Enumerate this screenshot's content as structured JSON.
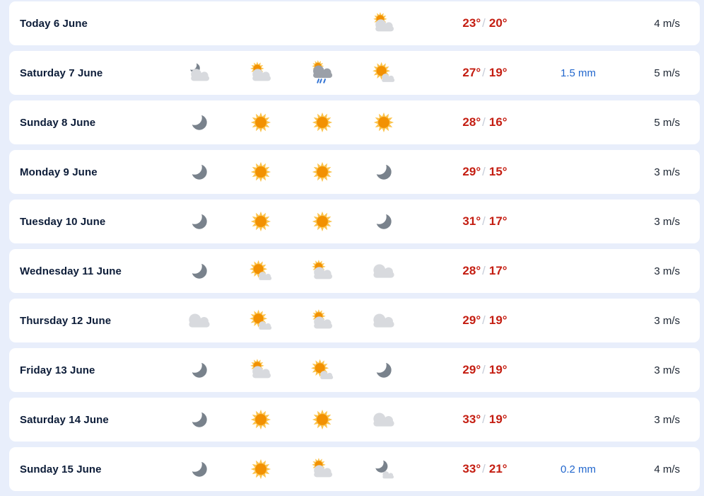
{
  "temp_divider": "/",
  "colors": {
    "background": "#e8eefb",
    "card": "#ffffff",
    "day-text": "#0c1c38",
    "temp": "#c41d11",
    "divider": "#c7cdd9",
    "precipitation": "#2267cd",
    "wind-text": "#1d2633",
    "sun-core": "#f29102",
    "sun-rays": "#fbc34d",
    "cloud-light": "#d8dade",
    "cloud-dark": "#9ba0a8",
    "moon": "#79828c",
    "rain-drop": "#3575d4"
  },
  "rows": [
    {
      "day": "Today 6 June",
      "icons": [
        null,
        null,
        null,
        "partlycloudy-day"
      ],
      "temp_max": "23°",
      "temp_min": "20°",
      "precipitation": "",
      "wind": "4 m/s"
    },
    {
      "day": "Saturday 7 June",
      "icons": [
        "partlycloudy-night",
        "partlycloudy-day",
        "lightrainshowers-day",
        "fair-day"
      ],
      "temp_max": "27°",
      "temp_min": "19°",
      "precipitation": "1.5 mm",
      "wind": "5 m/s"
    },
    {
      "day": "Sunday 8 June",
      "icons": [
        "clearsky-night",
        "clearsky-day",
        "clearsky-day",
        "clearsky-day"
      ],
      "temp_max": "28°",
      "temp_min": "16°",
      "precipitation": "",
      "wind": "5 m/s"
    },
    {
      "day": "Monday 9 June",
      "icons": [
        "clearsky-night",
        "clearsky-day",
        "clearsky-day",
        "clearsky-night"
      ],
      "temp_max": "29°",
      "temp_min": "15°",
      "precipitation": "",
      "wind": "3 m/s"
    },
    {
      "day": "Tuesday 10 June",
      "icons": [
        "clearsky-night",
        "clearsky-day",
        "clearsky-day",
        "clearsky-night"
      ],
      "temp_max": "31°",
      "temp_min": "17°",
      "precipitation": "",
      "wind": "3 m/s"
    },
    {
      "day": "Wednesday 11 June",
      "icons": [
        "clearsky-night",
        "fair-day",
        "partlycloudy-day",
        "cloudy"
      ],
      "temp_max": "28°",
      "temp_min": "17°",
      "precipitation": "",
      "wind": "3 m/s"
    },
    {
      "day": "Thursday 12 June",
      "icons": [
        "cloudy",
        "fair-day",
        "partlycloudy-day",
        "cloudy"
      ],
      "temp_max": "29°",
      "temp_min": "19°",
      "precipitation": "",
      "wind": "3 m/s"
    },
    {
      "day": "Friday 13 June",
      "icons": [
        "clearsky-night",
        "partlycloudy-day",
        "fair-day",
        "clearsky-night"
      ],
      "temp_max": "29°",
      "temp_min": "19°",
      "precipitation": "",
      "wind": "3 m/s"
    },
    {
      "day": "Saturday 14 June",
      "icons": [
        "clearsky-night",
        "clearsky-day",
        "clearsky-day",
        "cloudy"
      ],
      "temp_max": "33°",
      "temp_min": "19°",
      "precipitation": "",
      "wind": "3 m/s"
    },
    {
      "day": "Sunday 15 June",
      "icons": [
        "clearsky-night",
        "clearsky-day",
        "partlycloudy-day",
        "fair-night"
      ],
      "temp_max": "33°",
      "temp_min": "21°",
      "precipitation": "0.2 mm",
      "wind": "4 m/s"
    }
  ]
}
